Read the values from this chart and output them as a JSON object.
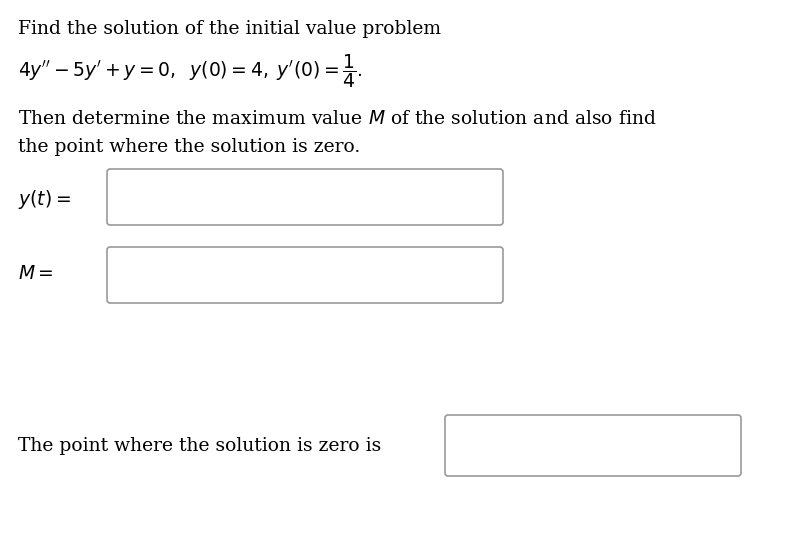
{
  "background_color": "#ffffff",
  "text_color": "#000000",
  "box_edge_color": "#999999",
  "line1": "Find the solution of the initial value problem",
  "line2": "$4y'' - 5y' + y = 0, \\;\\; y(0) = 4, \\; y'(0) = \\dfrac{1}{4}.$",
  "line3": "Then determine the maximum value $M$ of the solution and also find",
  "line4": "the point where the solution is zero.",
  "label_yt": "$y(t) =$",
  "label_M": "$M =$",
  "label_zero": "The point where the solution is zero is",
  "font_size": 13.5,
  "fig_width": 8.02,
  "fig_height": 5.45,
  "dpi": 100
}
